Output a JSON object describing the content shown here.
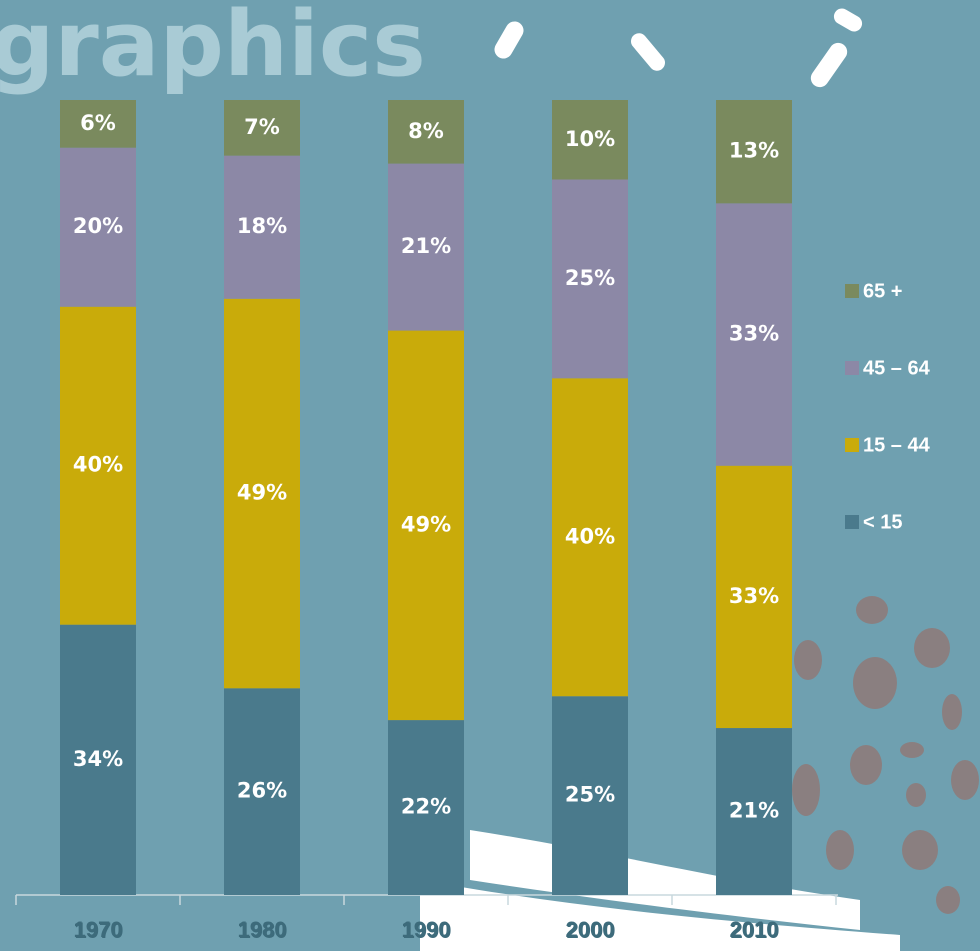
{
  "chart_data": {
    "type": "stacked_bar",
    "title": "graphics",
    "categories": [
      "1970",
      "1980",
      "1990",
      "2000",
      "2010"
    ],
    "series": [
      {
        "name": "< 15",
        "color": "#4a7a8c",
        "values": [
          34,
          26,
          22,
          25,
          21
        ],
        "value_labels": [
          "34%",
          "26%",
          "22%",
          "25%",
          "21%"
        ]
      },
      {
        "name": "15 – 44",
        "color": "#c9ab0a",
        "values": [
          40,
          49,
          49,
          40,
          33
        ],
        "value_labels": [
          "40%",
          "49%",
          "49%",
          "40%",
          "33%"
        ]
      },
      {
        "name": "45 – 64",
        "color": "#8c88a6",
        "values": [
          20,
          18,
          21,
          25,
          33
        ],
        "value_labels": [
          "20%",
          "18%",
          "21%",
          "25%",
          "33%"
        ]
      },
      {
        "name": "65 +",
        "color": "#7a8a5e",
        "values": [
          6,
          7,
          8,
          10,
          13
        ],
        "value_labels": [
          "6%",
          "7%",
          "8%",
          "10%",
          "13%"
        ]
      }
    ],
    "ylim": [
      0,
      100
    ],
    "legend": "right"
  }
}
